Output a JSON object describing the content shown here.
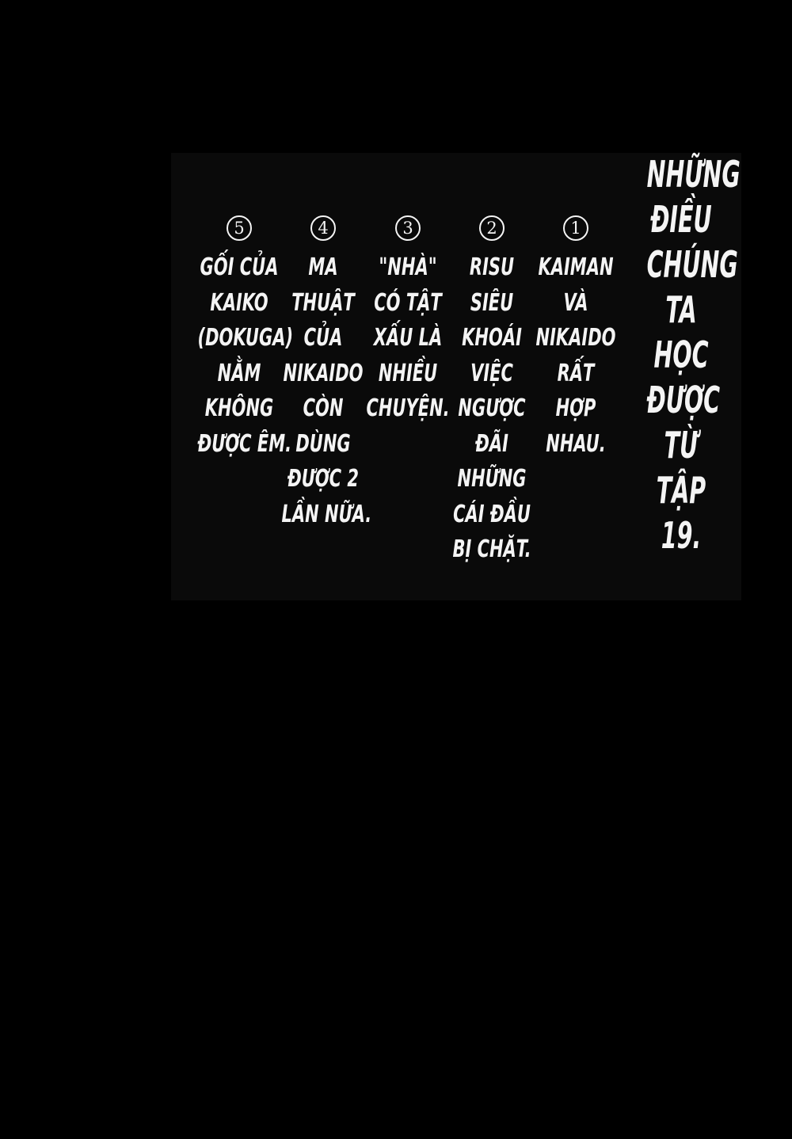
{
  "page": {
    "title_lines": [
      "NHỮNG",
      "ĐIỀU",
      "CHÚNG",
      "TA",
      "HỌC",
      "ĐƯỢC",
      "TỪ",
      "TẬP",
      "19."
    ],
    "columns": [
      {
        "number": "5",
        "lines": [
          "GỐI CỦA",
          "KAIKO",
          "(DOKUGA)",
          "NẰM",
          "KHÔNG",
          "ĐƯỢC ÊM."
        ]
      },
      {
        "number": "4",
        "lines": [
          "MA",
          "THUẬT",
          "CỦA",
          "NIKAIDO",
          "CÒN",
          "DÙNG",
          "ĐƯỢC 2",
          "LẦN NỮA."
        ]
      },
      {
        "number": "3",
        "lines": [
          "\"NHÀ\"",
          "CÓ TẬT",
          "XẤU LÀ",
          "NHIỀU",
          "CHUYỆN."
        ]
      },
      {
        "number": "2",
        "lines": [
          "RISU",
          "SIÊU",
          "KHOÁI",
          "VIỆC",
          "NGƯỢC",
          "ĐÃI",
          "NHỮNG",
          "CÁI ĐẦU",
          "BỊ CHẶT."
        ]
      },
      {
        "number": "1",
        "lines": [
          "KAIMAN",
          "VÀ",
          "NIKAIDO",
          "RẤT",
          "HỢP",
          "NHAU."
        ]
      }
    ],
    "colors": {
      "background": "#000000",
      "panel": "#0a0a0a",
      "text": "#f4f4f4"
    }
  }
}
